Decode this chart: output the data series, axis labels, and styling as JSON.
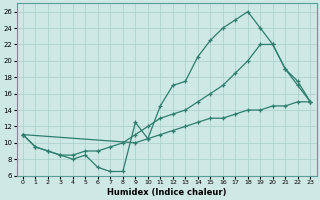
{
  "line1_x": [
    0,
    1,
    2,
    3,
    4,
    5,
    6,
    7,
    8,
    9,
    10,
    11,
    12,
    13,
    14,
    15,
    16,
    17,
    18,
    19,
    20,
    21,
    22,
    23
  ],
  "line1_y": [
    11,
    9.5,
    9,
    8.5,
    8,
    8.5,
    7,
    6.5,
    6.5,
    12.5,
    10.5,
    14.5,
    17,
    17.5,
    20.5,
    22.5,
    24,
    25,
    26,
    24,
    22,
    19,
    17.5,
    15
  ],
  "line2_x": [
    0,
    1,
    2,
    3,
    4,
    5,
    6,
    7,
    8,
    9,
    10,
    11,
    12,
    13,
    14,
    15,
    16,
    17,
    18,
    19,
    20,
    21,
    22,
    23
  ],
  "line2_y": [
    11,
    9.5,
    9,
    8.5,
    8.5,
    9,
    9,
    9.5,
    10,
    11,
    12,
    13,
    13.5,
    14,
    15,
    16,
    17,
    18.5,
    20,
    22,
    22,
    19,
    17,
    15
  ],
  "line3_x": [
    0,
    9,
    10,
    11,
    12,
    13,
    14,
    15,
    16,
    17,
    18,
    19,
    20,
    21,
    22,
    23
  ],
  "line3_y": [
    11,
    10,
    10.5,
    11,
    11.5,
    12,
    12.5,
    13,
    13,
    13.5,
    14,
    14,
    14.5,
    14.5,
    15,
    15
  ],
  "line_color": "#2e7d6e",
  "bg_color": "#cde8e5",
  "grid_color": "#aacfcc",
  "xlabel": "Humidex (Indice chaleur)",
  "ylim": [
    6,
    27
  ],
  "xlim": [
    -0.5,
    23.5
  ],
  "yticks": [
    6,
    8,
    10,
    12,
    14,
    16,
    18,
    20,
    22,
    24,
    26
  ],
  "xticks": [
    0,
    1,
    2,
    3,
    4,
    5,
    6,
    7,
    8,
    9,
    10,
    11,
    12,
    13,
    14,
    15,
    16,
    17,
    18,
    19,
    20,
    21,
    22,
    23
  ]
}
